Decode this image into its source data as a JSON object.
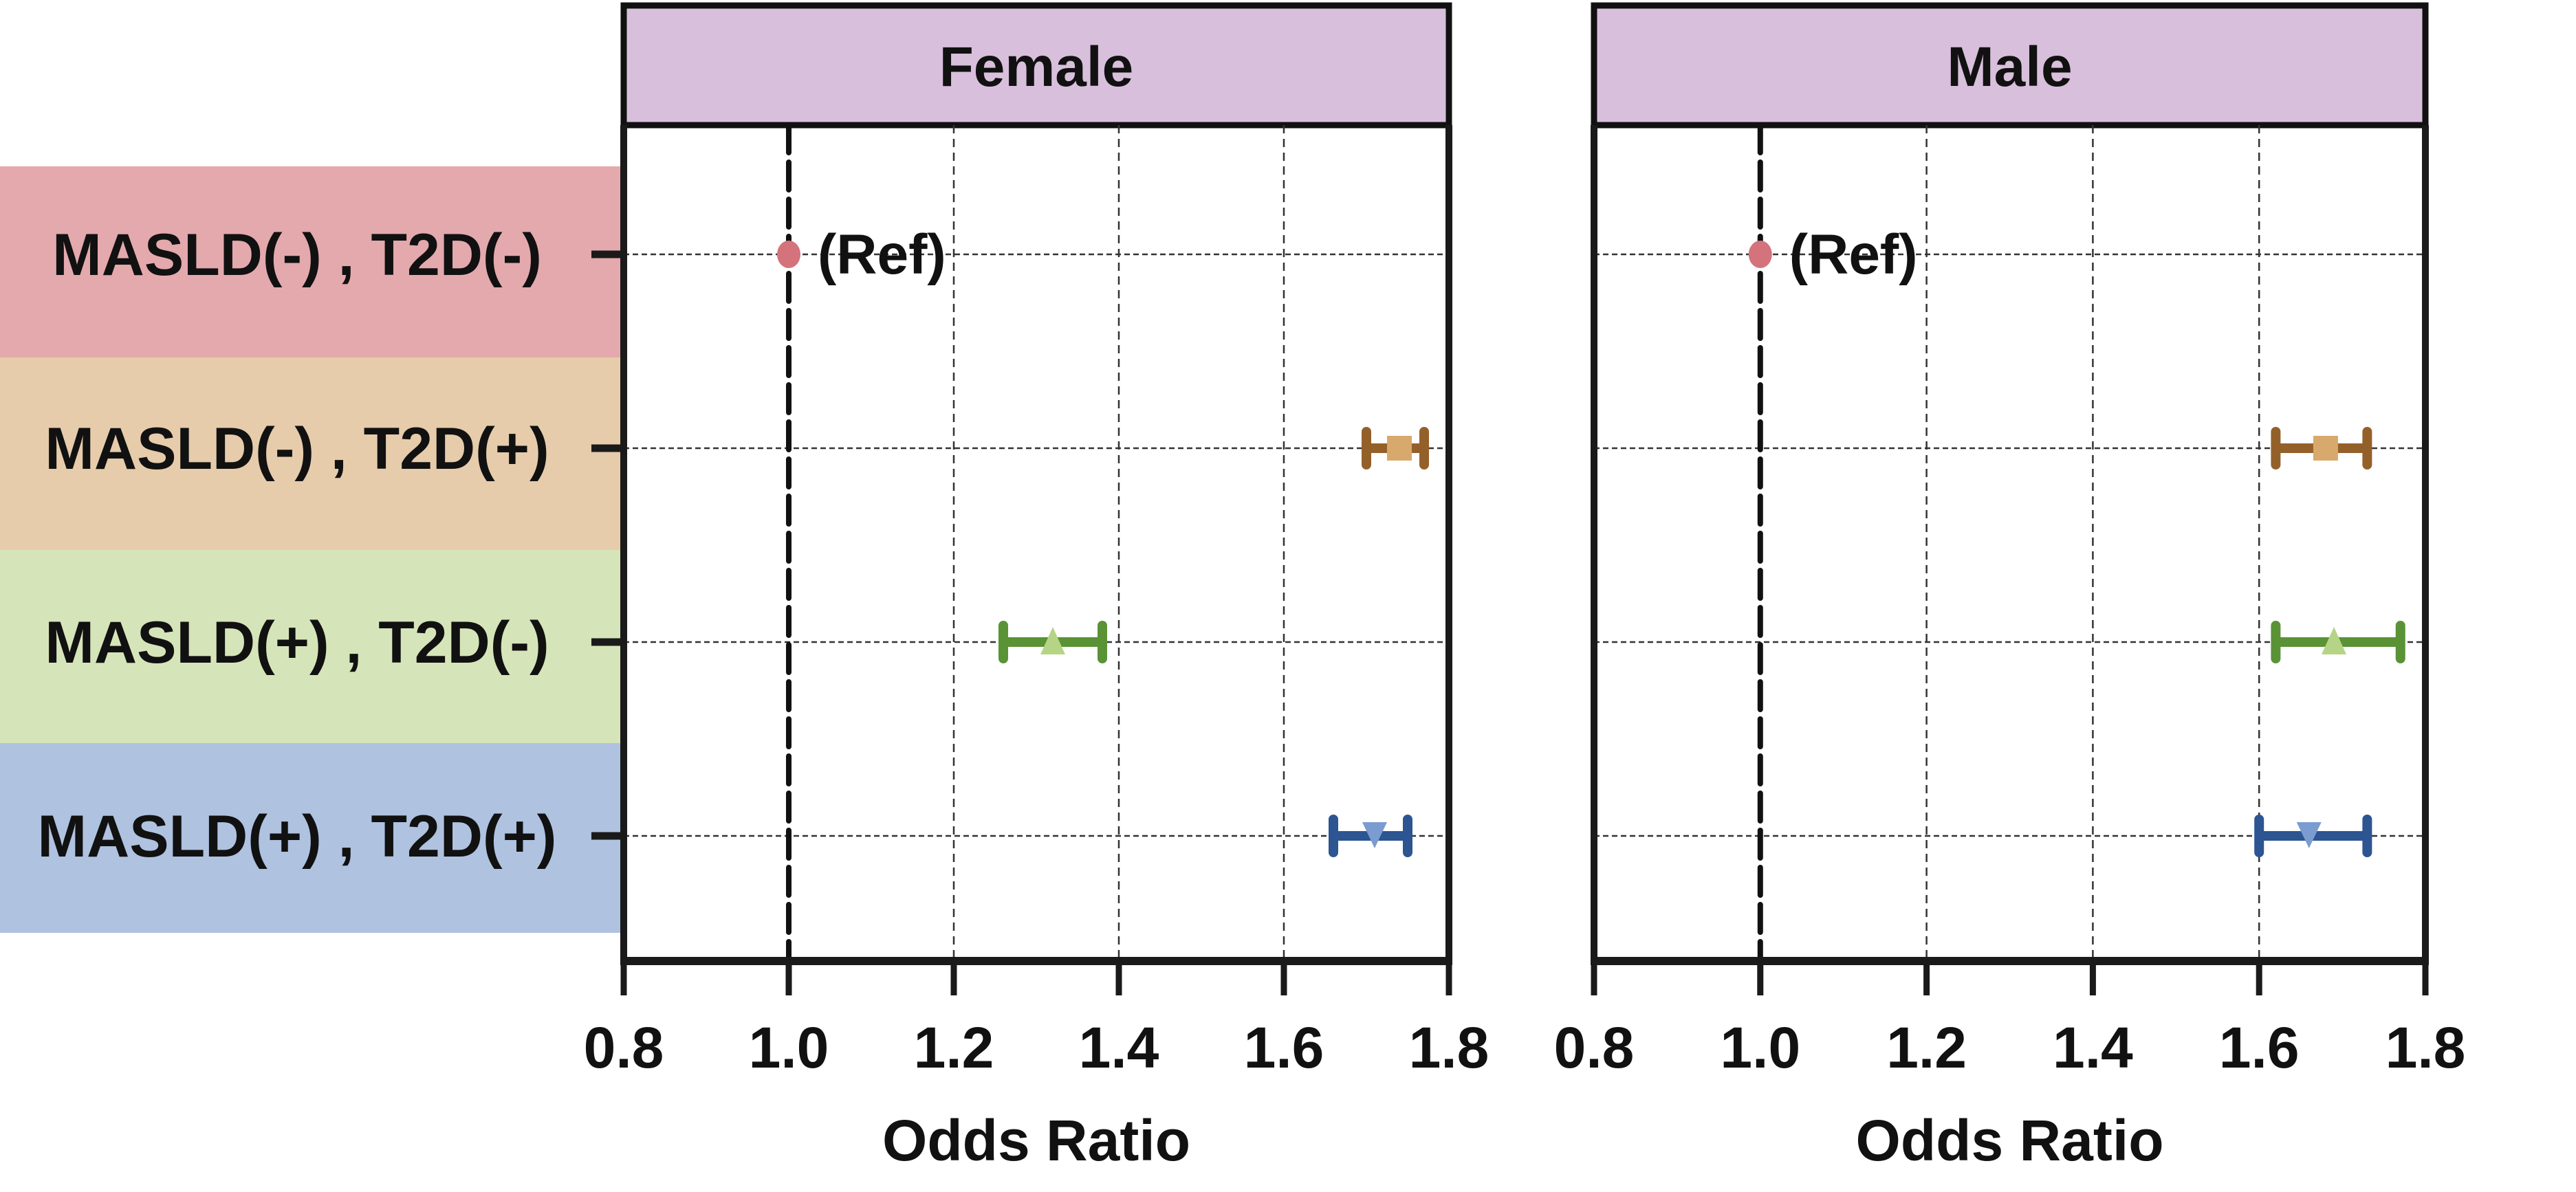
{
  "chart_data": {
    "type": "forest",
    "xlabel": "Odds Ratio",
    "xlim": [
      0.8,
      1.8
    ],
    "xticks": [
      "0.8",
      "1.0",
      "1.2",
      "1.4",
      "1.6",
      "1.8"
    ],
    "tick_values": [
      0.8,
      1.0,
      1.2,
      1.4,
      1.6,
      1.8
    ],
    "reference_line": 1.0,
    "grid": true,
    "categories": [
      {
        "label": "MASLD(-) , T2D(-)",
        "band_color": "#e4a9ad",
        "marker": "circle",
        "marker_color": "#d4737c",
        "bar_color": "#d4737c"
      },
      {
        "label": "MASLD(-) , T2D(+)",
        "band_color": "#e6ccab",
        "marker": "square",
        "marker_color": "#d8a96c",
        "bar_color": "#94602a"
      },
      {
        "label": "MASLD(+) , T2D(-)",
        "band_color": "#d6e5b9",
        "marker": "triangle-up",
        "marker_color": "#b6d486",
        "bar_color": "#5a9236"
      },
      {
        "label": "MASLD(+) , T2D(+)",
        "band_color": "#afc2e0",
        "marker": "triangle-down",
        "marker_color": "#7b9cd0",
        "bar_color": "#2c5592"
      }
    ],
    "panels": [
      {
        "title": "Female",
        "header_color": "#d8bfdb",
        "series": [
          {
            "or": 1.0,
            "lower": null,
            "upper": null,
            "annotation": "(Ref)"
          },
          {
            "or": 1.74,
            "lower": 1.7,
            "upper": 1.77,
            "annotation": ""
          },
          {
            "or": 1.32,
            "lower": 1.26,
            "upper": 1.38,
            "annotation": ""
          },
          {
            "or": 1.71,
            "lower": 1.66,
            "upper": 1.75,
            "annotation": ""
          }
        ]
      },
      {
        "title": "Male",
        "header_color": "#d8bfdb",
        "series": [
          {
            "or": 1.0,
            "lower": null,
            "upper": null,
            "annotation": "(Ref)"
          },
          {
            "or": 1.68,
            "lower": 1.62,
            "upper": 1.73,
            "annotation": ""
          },
          {
            "or": 1.69,
            "lower": 1.62,
            "upper": 1.77,
            "annotation": ""
          },
          {
            "or": 1.66,
            "lower": 1.6,
            "upper": 1.73,
            "annotation": ""
          }
        ]
      }
    ]
  }
}
